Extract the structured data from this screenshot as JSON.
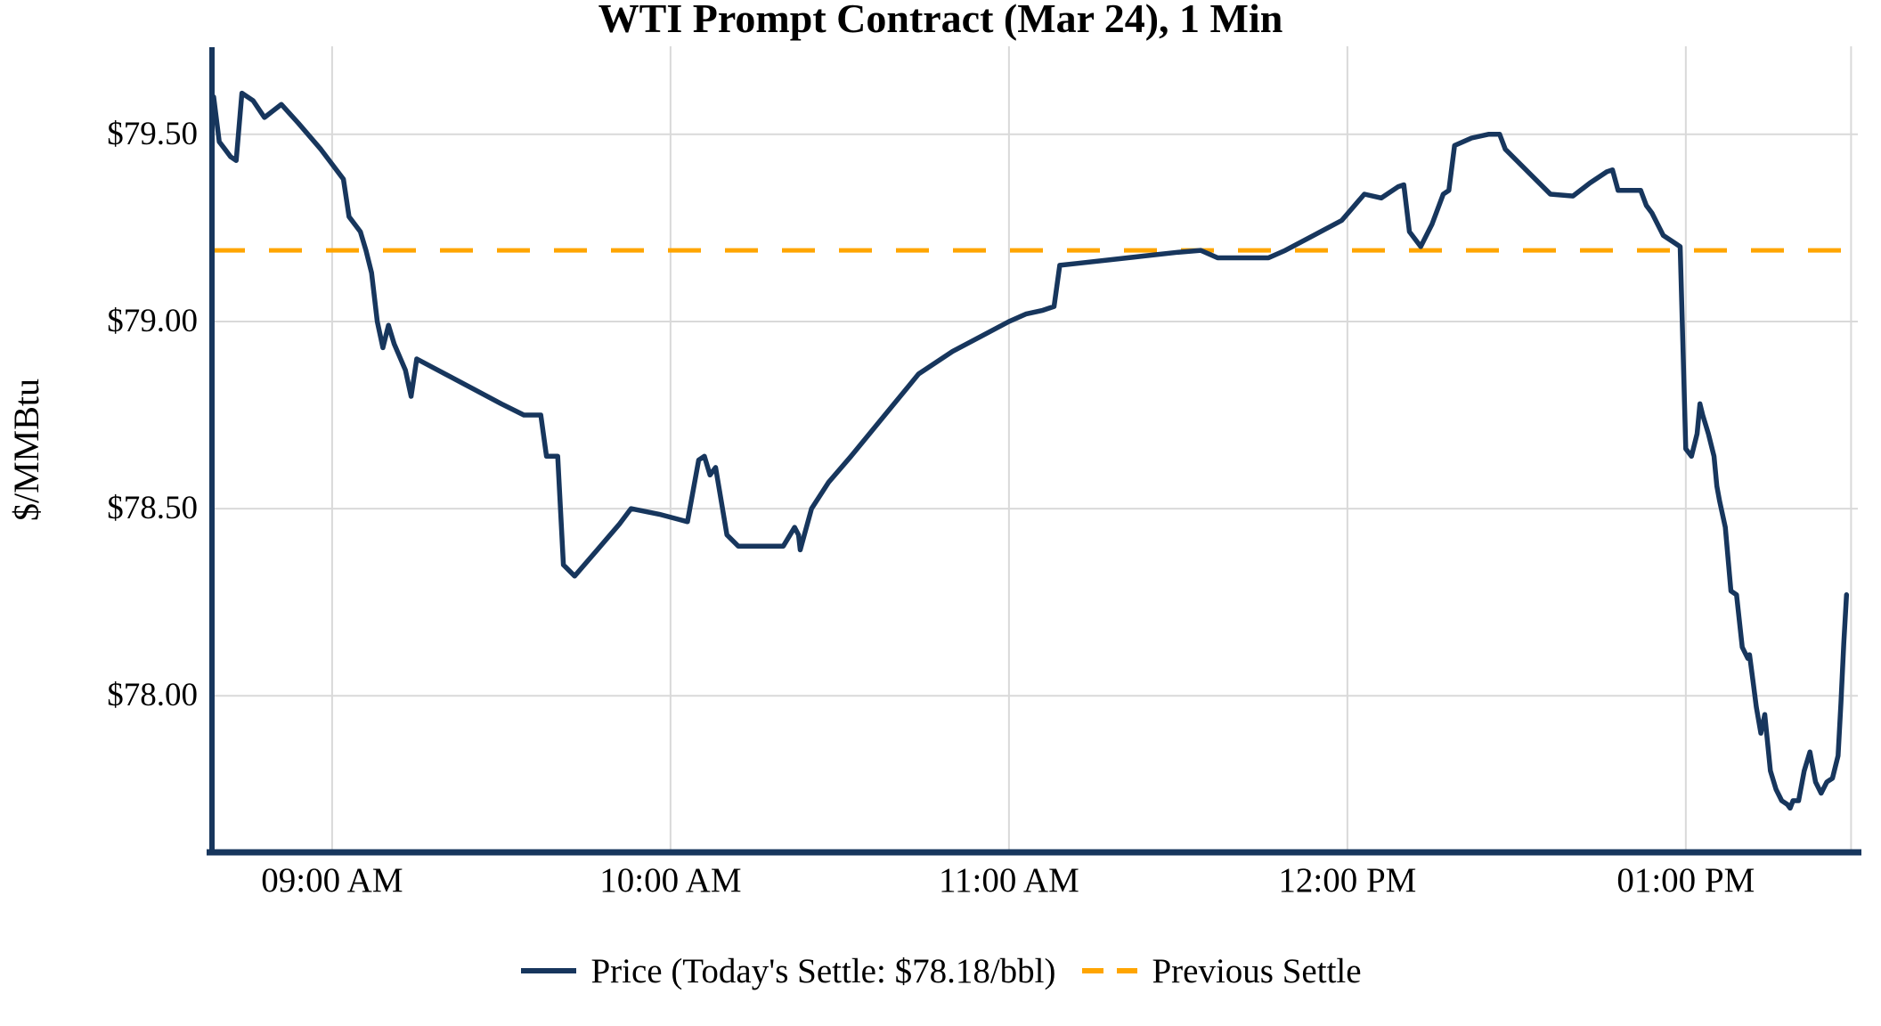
{
  "chart": {
    "title": "WTI Prompt Contract (Mar 24), 1 Min",
    "ylabel": "$/MMBtu"
  },
  "chart_data": {
    "type": "line",
    "title": "WTI Prompt Contract (Mar 24), 1 Min",
    "xlabel": "",
    "ylabel": "$/MMBtu",
    "x_unit": "minutes_from_midnight",
    "xlim": [
      518.7,
      810.5
    ],
    "ylim": [
      77.582,
      79.716
    ],
    "grid": true,
    "grid_color": "#d9d9d9",
    "axis_color": "#17365d",
    "previous_settle": 79.19,
    "todays_settle": 78.18,
    "x_ticks": [
      {
        "value": 540,
        "label": "09:00 AM"
      },
      {
        "value": 600,
        "label": "10:00 AM"
      },
      {
        "value": 660,
        "label": "11:00 AM"
      },
      {
        "value": 720,
        "label": "12:00 PM"
      },
      {
        "value": 780,
        "label": "01:00 PM"
      },
      {
        "value": 809.3,
        "label": ""
      }
    ],
    "y_ticks": [
      {
        "value": 78.0,
        "label": "$78.00"
      },
      {
        "value": 78.5,
        "label": "$78.50"
      },
      {
        "value": 79.0,
        "label": "$79.00"
      },
      {
        "value": 79.5,
        "label": "$79.50"
      }
    ],
    "legend": [
      {
        "label": "Price (Today's Settle: $78.18/bbl)",
        "style": "solid",
        "color": "#17365d"
      },
      {
        "label": "Previous Settle",
        "style": "dashed",
        "color": "#ffa500"
      }
    ],
    "series": [
      {
        "name": "Price",
        "color": "#17365d",
        "points": [
          [
            519,
            79.6
          ],
          [
            520,
            79.48
          ],
          [
            521,
            79.46
          ],
          [
            522,
            79.44
          ],
          [
            523,
            79.43
          ],
          [
            524,
            79.61
          ],
          [
            526,
            79.59
          ],
          [
            528,
            79.545
          ],
          [
            531,
            79.58
          ],
          [
            534,
            79.53
          ],
          [
            538,
            79.46
          ],
          [
            540,
            79.42
          ],
          [
            542,
            79.38
          ],
          [
            543,
            79.28
          ],
          [
            545,
            79.24
          ],
          [
            546,
            79.19
          ],
          [
            547,
            79.13
          ],
          [
            548,
            79.0
          ],
          [
            549,
            78.93
          ],
          [
            550,
            78.99
          ],
          [
            551,
            78.94
          ],
          [
            553,
            78.87
          ],
          [
            554,
            78.8
          ],
          [
            555,
            78.9
          ],
          [
            560,
            78.86
          ],
          [
            565,
            78.82
          ],
          [
            570,
            78.78
          ],
          [
            574,
            78.75
          ],
          [
            577,
            78.75
          ],
          [
            578,
            78.64
          ],
          [
            580,
            78.64
          ],
          [
            581,
            78.35
          ],
          [
            583,
            78.32
          ],
          [
            587,
            78.39
          ],
          [
            591,
            78.46
          ],
          [
            593,
            78.5
          ],
          [
            598,
            78.485
          ],
          [
            603,
            78.465
          ],
          [
            605,
            78.63
          ],
          [
            606,
            78.64
          ],
          [
            607,
            78.59
          ],
          [
            608,
            78.61
          ],
          [
            610,
            78.43
          ],
          [
            612,
            78.4
          ],
          [
            620,
            78.4
          ],
          [
            622,
            78.45
          ],
          [
            622.7,
            78.43
          ],
          [
            623,
            78.39
          ],
          [
            625,
            78.5
          ],
          [
            628,
            78.57
          ],
          [
            632,
            78.64
          ],
          [
            638,
            78.75
          ],
          [
            644,
            78.86
          ],
          [
            650,
            78.92
          ],
          [
            655,
            78.96
          ],
          [
            660,
            79.0
          ],
          [
            663,
            79.02
          ],
          [
            666,
            79.03
          ],
          [
            668,
            79.04
          ],
          [
            669,
            79.15
          ],
          [
            672,
            79.155
          ],
          [
            678,
            79.165
          ],
          [
            684,
            79.175
          ],
          [
            690,
            79.185
          ],
          [
            694,
            79.19
          ],
          [
            697,
            79.17
          ],
          [
            706,
            79.17
          ],
          [
            709,
            79.19
          ],
          [
            714,
            79.23
          ],
          [
            719,
            79.27
          ],
          [
            723,
            79.34
          ],
          [
            726,
            79.33
          ],
          [
            729,
            79.36
          ],
          [
            730,
            79.365
          ],
          [
            731,
            79.24
          ],
          [
            733,
            79.2
          ],
          [
            735,
            79.26
          ],
          [
            737,
            79.34
          ],
          [
            738,
            79.35
          ],
          [
            739,
            79.47
          ],
          [
            742,
            79.49
          ],
          [
            745,
            79.5
          ],
          [
            747,
            79.5
          ],
          [
            748,
            79.46
          ],
          [
            752,
            79.4
          ],
          [
            756,
            79.34
          ],
          [
            760,
            79.335
          ],
          [
            763,
            79.37
          ],
          [
            766,
            79.4
          ],
          [
            767,
            79.405
          ],
          [
            768,
            79.35
          ],
          [
            772,
            79.35
          ],
          [
            773,
            79.31
          ],
          [
            774,
            79.29
          ],
          [
            776,
            79.23
          ],
          [
            778,
            79.21
          ],
          [
            779,
            79.2
          ],
          [
            780,
            78.66
          ],
          [
            781,
            78.64
          ],
          [
            782,
            78.7
          ],
          [
            782.5,
            78.78
          ],
          [
            783,
            78.75
          ],
          [
            784,
            78.7
          ],
          [
            785,
            78.64
          ],
          [
            785.5,
            78.56
          ],
          [
            786,
            78.52
          ],
          [
            787,
            78.45
          ],
          [
            788,
            78.28
          ],
          [
            789,
            78.27
          ],
          [
            790,
            78.13
          ],
          [
            791,
            78.1
          ],
          [
            791.3,
            78.11
          ],
          [
            792,
            78.03
          ],
          [
            792.5,
            77.97
          ],
          [
            793.3,
            77.9
          ],
          [
            794,
            77.95
          ],
          [
            795,
            77.8
          ],
          [
            796,
            77.75
          ],
          [
            797,
            77.72
          ],
          [
            798,
            77.71
          ],
          [
            798.5,
            77.7
          ],
          [
            799,
            77.72
          ],
          [
            800,
            77.72
          ],
          [
            801,
            77.8
          ],
          [
            802,
            77.85
          ],
          [
            803,
            77.77
          ],
          [
            804,
            77.74
          ],
          [
            805,
            77.77
          ],
          [
            806,
            77.78
          ],
          [
            807,
            77.84
          ],
          [
            807.5,
            77.98
          ],
          [
            808,
            78.14
          ],
          [
            808.5,
            78.27
          ]
        ]
      },
      {
        "name": "Previous Settle",
        "type": "hline",
        "value": 79.19,
        "color": "#ffa500",
        "dashed": true
      }
    ]
  }
}
